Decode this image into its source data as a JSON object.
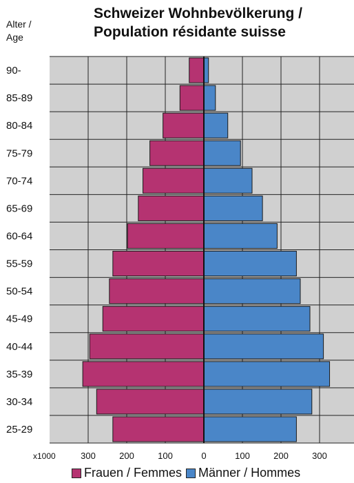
{
  "chart_data": {
    "type": "bar",
    "orientation": "horizontal-population-pyramid",
    "title_line1": "Schweizer Wohnbevölkerung /",
    "title_line2": "Population résidante suisse",
    "ylabel_line1": "Alter /",
    "ylabel_line2": "Age",
    "x_unit_label": "x1000",
    "categories": [
      "90-",
      "85-89",
      "80-84",
      "75-79",
      "70-74",
      "65-69",
      "60-64",
      "55-59",
      "50-54",
      "45-49",
      "40-44",
      "35-39",
      "30-34",
      "25-29"
    ],
    "series": [
      {
        "name": "Frauen / Femmes",
        "side": "left",
        "color": "#b53371",
        "values": [
          38,
          62,
          106,
          140,
          158,
          170,
          198,
          236,
          245,
          262,
          296,
          314,
          278,
          236
        ]
      },
      {
        "name": "Männer / Hommes",
        "side": "right",
        "color": "#4a86c8",
        "values": [
          12,
          30,
          62,
          95,
          125,
          152,
          190,
          240,
          250,
          275,
          310,
          326,
          280,
          240
        ]
      }
    ],
    "xlim": [
      -300,
      300
    ],
    "x_ticks": [
      {
        "value": -300,
        "label": "300"
      },
      {
        "value": -200,
        "label": "200"
      },
      {
        "value": -100,
        "label": "100"
      },
      {
        "value": 0,
        "label": "0"
      },
      {
        "value": 100,
        "label": "100"
      },
      {
        "value": 200,
        "label": "200"
      },
      {
        "value": 300,
        "label": "300"
      }
    ],
    "grid": true,
    "plot_background": "#d0d0d0",
    "legend_position": "bottom"
  }
}
